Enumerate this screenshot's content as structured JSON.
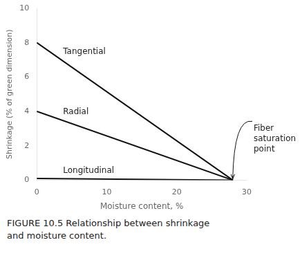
{
  "chart_data": {
    "type": "line",
    "x": [
      0,
      28
    ],
    "series": [
      {
        "name": "Tangential",
        "color": "#111111",
        "values": [
          8.0,
          0.0
        ]
      },
      {
        "name": "Radial",
        "color": "#111111",
        "values": [
          4.0,
          0.0
        ]
      },
      {
        "name": "Longitudinal",
        "color": "#111111",
        "values": [
          0.1,
          0.0
        ]
      }
    ],
    "marker": "none",
    "xlabel": "Moisture content, %",
    "ylabel": "Shrinkage (% of green dimension)",
    "xlim": [
      0,
      30
    ],
    "ylim": [
      0,
      10
    ],
    "xticks": [
      0,
      10,
      20,
      30
    ],
    "yticks": [
      0,
      2,
      4,
      6,
      8,
      10
    ],
    "grid": false,
    "annotations": [
      {
        "text": [
          "Fiber",
          "saturation",
          "point"
        ],
        "x": 28
      },
      {
        "text": [
          "FIGURE 10.5 Relationship between shrinkage",
          "and moisture content."
        ]
      }
    ]
  }
}
